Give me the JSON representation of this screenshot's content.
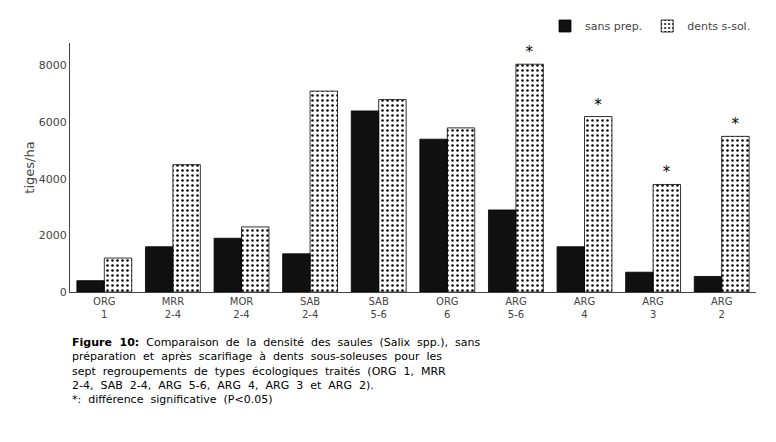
{
  "chart_data": {
    "type": "bar",
    "categories": [
      "ORG\n1",
      "MRR\n2-4",
      "MOR\n2-4",
      "SAB\n2-4",
      "SAB\n5-6",
      "ORG\n6",
      "ARG\n5-6",
      "ARG\n4",
      "ARG\n3",
      "ARG\n2"
    ],
    "series": [
      {
        "name": "sans prep.",
        "color": "#111111",
        "values": [
          400,
          1600,
          1900,
          1350,
          6400,
          5400,
          2900,
          1600,
          700,
          550
        ]
      },
      {
        "name": "dents s-sol.",
        "color": "#d0d0d0",
        "values": [
          1200,
          4500,
          2300,
          7100,
          6800,
          5800,
          8050,
          6200,
          3800,
          5500
        ]
      }
    ],
    "y_label": "tiges/ha",
    "ylim": [
      0,
      8800
    ],
    "yticks": [
      0,
      2000,
      4000,
      6000,
      8000
    ],
    "grid": false,
    "legend": "upper right",
    "annotations": [
      {
        "text": "*",
        "series": "dents s-sol.",
        "category": "ARG\n5-6"
      },
      {
        "text": "*",
        "series": "dents s-sol.",
        "category": "ARG\n4"
      },
      {
        "text": "*",
        "series": "dents s-sol.",
        "category": "ARG\n3"
      },
      {
        "text": "*",
        "series": "dents s-sol.",
        "category": "ARG\n2"
      }
    ],
    "caption": [
      "Figure  10:  Comparaison  de  la  densité  des  saules  (Salix  spp.),  sans",
      "préparation  et  après  scarifiage  à  dents  sous-soleuses  pour  les",
      "sept  regroupements  de  types  écologiques  traités  (ORG  1,  MRR",
      "2-4,  SAB  2-4,  ARG  5-6,  ARG  4,  ARG  3  et  ARG  2).",
      "*:  différence  significative  (P<0.05)"
    ]
  }
}
